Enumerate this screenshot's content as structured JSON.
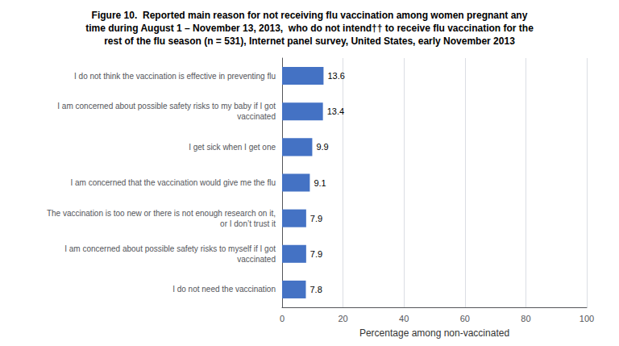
{
  "chart_data": {
    "type": "bar",
    "orientation": "horizontal",
    "title": "Figure 10.  Reported main reason for not receiving flu vaccination among women pregnant any\ntime during August 1 – November 13, 2013,  who do not intend†† to receive flu vaccination for the\nrest of the flu season (n = 531), Internet panel survey, United States, early November 2013",
    "categories": [
      "I do not think the vaccination is effective in preventing flu",
      "I am concerned about possible safety risks to my baby if I got\nvaccinated",
      "I get sick when I get one",
      "I am concerned that the vaccination would give me the flu",
      "The vaccination is too new or there is not enough research on it,\nor I don’t trust it",
      "I am concerned about possible safety risks to myself if I got\nvaccinated",
      "I do not need the vaccination"
    ],
    "values": [
      13.6,
      13.4,
      9.9,
      9.1,
      7.9,
      7.9,
      7.8
    ],
    "color": "#4472C4",
    "xlabel": "Percentage among non-vaccinated",
    "xlim": [
      0,
      100
    ],
    "xticks": [
      0,
      20,
      40,
      60,
      80,
      100
    ],
    "grid": true,
    "data_labels": true
  }
}
